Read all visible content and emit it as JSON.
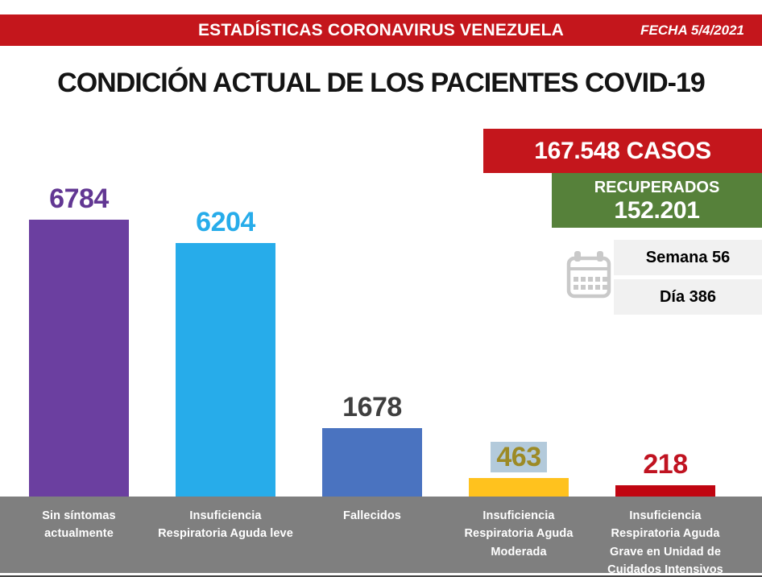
{
  "banner": {
    "title": "ESTADÍSTICAS CORONAVIRUS VENEZUELA",
    "date": "FECHA 5/4/2021",
    "bg_color": "#c4161c"
  },
  "page_title": "CONDICIÓN ACTUAL DE LOS PACIENTES COVID-19",
  "summary": {
    "cases_banner": "167.548 CASOS",
    "cases_bg": "#c4161c",
    "recovered_label": "RECUPERADOS",
    "recovered_value": "152.201",
    "recovered_bg": "#56813a",
    "week_label": "Semana 56",
    "day_label": "Día 386",
    "info_box_bg": "#f1f1f1",
    "calendar_icon": "calendar",
    "calendar_icon_color": "#c9c9c9"
  },
  "chart_data": {
    "type": "bar",
    "title": "CONDICIÓN ACTUAL DE LOS PACIENTES COVID-19",
    "categories": [
      "Sin síntomas actualmente",
      "Insuficiencia Respiratoria Aguda leve",
      "Fallecidos",
      "Insuficiencia Respiratoria Aguda Moderada",
      "Insuficiencia Respiratoria Aguda Grave en Unidad de Cuidados Intensivos"
    ],
    "category_lines": [
      [
        "Sin síntomas",
        "actualmente"
      ],
      [
        "Insuficiencia",
        "Respiratoria Aguda leve"
      ],
      [
        "Fallecidos"
      ],
      [
        "Insuficiencia",
        "Respiratoria Aguda",
        "Moderada"
      ],
      [
        "Insuficiencia",
        "Respiratoria Aguda",
        "Grave en Unidad de",
        "Cuidados Intensivos"
      ]
    ],
    "values": [
      6784,
      6204,
      1678,
      463,
      218
    ],
    "bar_colors": [
      "#6b3fa0",
      "#27acea",
      "#4a73c0",
      "#ffc21e",
      "#c00511"
    ],
    "value_label_colors": [
      "#623793",
      "#27acea",
      "#3f3f3f",
      "#9c8a25",
      "#c01321"
    ],
    "value_label_highlight_bg": [
      null,
      null,
      null,
      "#b3cadb",
      null
    ],
    "xlabel": "",
    "ylabel": "",
    "ylim": [
      0,
      7000
    ],
    "grid": false,
    "legend": false,
    "axis_band_color": "#7f7f7f",
    "axis_band_text_color": "#ffffff"
  }
}
